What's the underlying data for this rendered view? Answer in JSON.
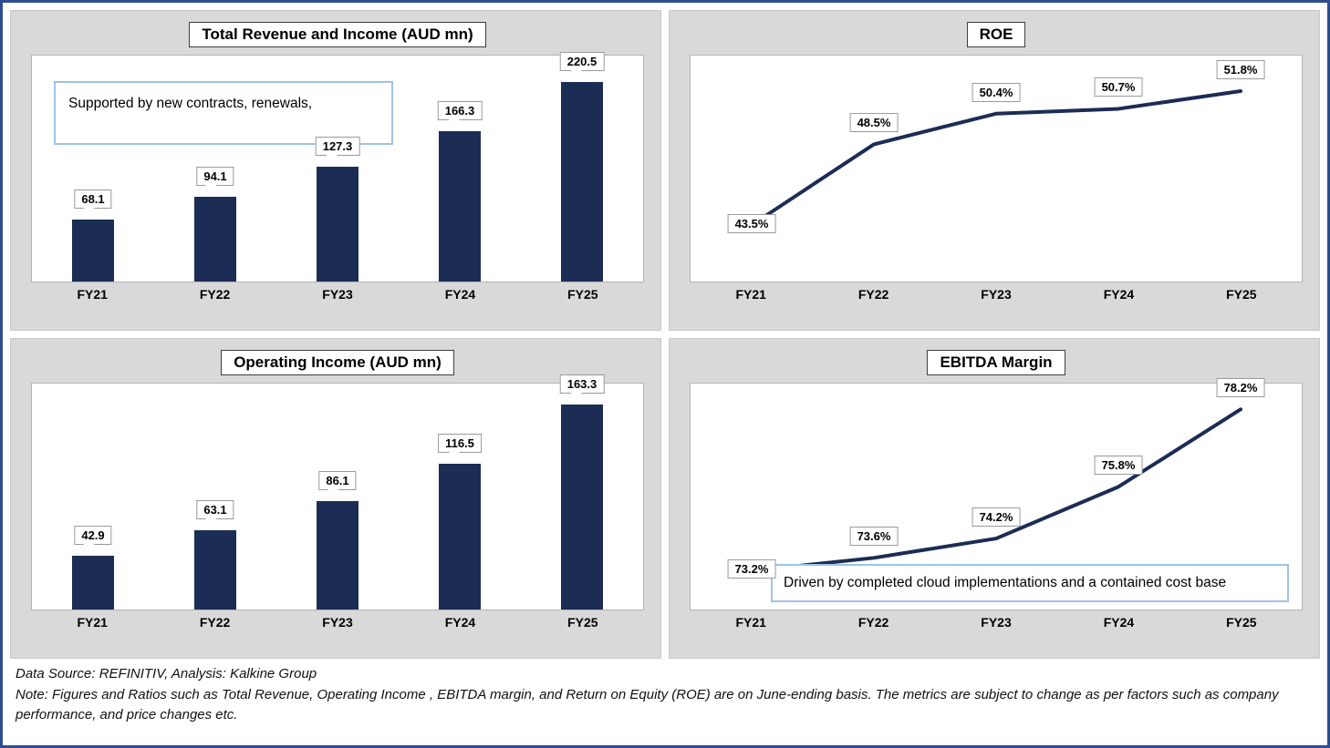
{
  "page": {
    "colors": {
      "navy": "#1b2c55",
      "panel_bg": "#d9d9d9",
      "annotation_border": "#9dc3e6",
      "outer_border": "#2e4d8e"
    },
    "footer": {
      "source_line": "Data Source: REFINITIV, Analysis: Kalkine Group",
      "note_line": "Note: Figures and Ratios such as Total Revenue, Operating  Income , EBITDA margin, and Return on Equity (ROE) are on  June-ending basis. The metrics are subject to change as per factors such as company performance, and price changes etc."
    }
  },
  "chart_data": [
    {
      "id": "revenue",
      "type": "bar",
      "title": "Total Revenue and Income (AUD mn)",
      "categories": [
        "FY21",
        "FY22",
        "FY23",
        "FY24",
        "FY25"
      ],
      "values": [
        68.1,
        94.1,
        127.3,
        166.3,
        220.5
      ],
      "suffix": "",
      "ylim": [
        0,
        250
      ],
      "annotation": "Supported by new contracts, renewals,",
      "legend": "none",
      "grid": false
    },
    {
      "id": "roe",
      "type": "line",
      "title": "ROE",
      "categories": [
        "FY21",
        "FY22",
        "FY23",
        "FY24",
        "FY25"
      ],
      "values": [
        43.5,
        48.5,
        50.4,
        50.7,
        51.8
      ],
      "suffix": "%",
      "ylim": [
        40,
        54
      ],
      "annotation": "",
      "legend": "none",
      "grid": false
    },
    {
      "id": "opincome",
      "type": "bar",
      "title": "Operating Income (AUD mn)",
      "categories": [
        "FY21",
        "FY22",
        "FY23",
        "FY24",
        "FY25"
      ],
      "values": [
        42.9,
        63.1,
        86.1,
        116.5,
        163.3
      ],
      "suffix": "",
      "ylim": [
        0,
        180
      ],
      "annotation": "",
      "legend": "none",
      "grid": false
    },
    {
      "id": "ebitda",
      "type": "line",
      "title": "EBITDA Margin",
      "categories": [
        "FY21",
        "FY22",
        "FY23",
        "FY24",
        "FY25"
      ],
      "values": [
        73.2,
        73.6,
        74.2,
        75.8,
        78.2
      ],
      "suffix": "%",
      "ylim": [
        72,
        79
      ],
      "annotation": "Driven by completed cloud implementations and a contained cost base",
      "legend": "none",
      "grid": false
    }
  ]
}
